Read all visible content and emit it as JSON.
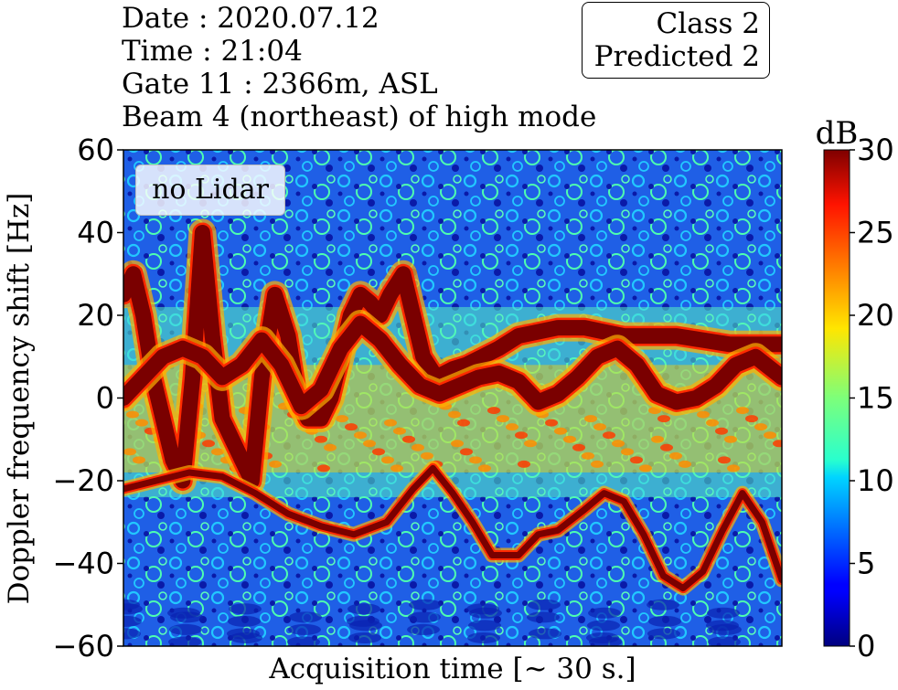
{
  "header": {
    "date": "Date : 2020.07.12",
    "time": "Time : 21:04",
    "gate": "Gate 11 : 2366m, ASL",
    "beam": "Beam 4 (northeast) of high mode"
  },
  "class_box": {
    "class_label": "Class 2",
    "predicted_label": "Predicted 2"
  },
  "legend_label": "no Lidar",
  "colors": {
    "background": "#1346d9",
    "noise_light": "#1ec3ff",
    "noise_green": "#6cff88",
    "band_orange": "#ff6a00",
    "signal": "#7a0000"
  },
  "chart_data": {
    "type": "heatmap",
    "xlabel": "Acquisition time [~ 30 s.]",
    "ylabel": "Doppler frequency shift [Hz]",
    "ylim": [
      -60,
      60
    ],
    "yticks": [
      "60",
      "40",
      "20",
      "0",
      "−20",
      "−40",
      "−60"
    ],
    "ytick_values": [
      60,
      40,
      20,
      0,
      -20,
      -40,
      -60
    ],
    "colorbar": {
      "label": "dB",
      "range": [
        0,
        30
      ],
      "ticks": [
        "30",
        "25",
        "20",
        "15",
        "10",
        "5",
        "0"
      ],
      "tick_values": [
        30,
        25,
        20,
        15,
        10,
        5,
        0
      ],
      "colormap": "jet"
    },
    "series": [
      {
        "values": [
          [
            0,
            25
          ],
          [
            0.015,
            30
          ],
          [
            0.03,
            20
          ],
          [
            0.045,
            5
          ],
          [
            0.06,
            -5
          ],
          [
            0.075,
            -15
          ],
          [
            0.09,
            -20
          ],
          [
            0.105,
            5
          ],
          [
            0.12,
            40
          ],
          [
            0.135,
            15
          ],
          [
            0.15,
            -5
          ],
          [
            0.165,
            -10
          ],
          [
            0.18,
            -15
          ],
          [
            0.195,
            -20
          ],
          [
            0.21,
            5
          ],
          [
            0.23,
            25
          ],
          [
            0.25,
            15
          ],
          [
            0.265,
            0
          ],
          [
            0.28,
            -5
          ],
          [
            0.3,
            -5
          ],
          [
            0.315,
            0
          ],
          [
            0.33,
            10
          ],
          [
            0.345,
            20
          ],
          [
            0.36,
            25
          ],
          [
            0.375,
            23
          ],
          [
            0.39,
            20
          ],
          [
            0.405,
            25
          ],
          [
            0.425,
            30
          ],
          [
            0.44,
            20
          ],
          [
            0.455,
            10
          ],
          [
            0.475,
            5
          ],
          [
            0.5,
            7
          ],
          [
            0.52,
            8
          ],
          [
            0.545,
            10
          ],
          [
            0.57,
            12
          ],
          [
            0.6,
            15
          ],
          [
            0.63,
            16
          ],
          [
            0.66,
            17
          ],
          [
            0.7,
            17
          ],
          [
            0.73,
            16
          ],
          [
            0.76,
            15
          ],
          [
            0.8,
            15
          ],
          [
            0.84,
            15
          ],
          [
            0.88,
            14
          ],
          [
            0.92,
            13
          ],
          [
            0.96,
            13
          ],
          [
            1.0,
            13
          ]
        ]
      },
      {
        "values": [
          [
            0,
            0
          ],
          [
            0.03,
            5
          ],
          [
            0.06,
            10
          ],
          [
            0.09,
            12
          ],
          [
            0.12,
            10
          ],
          [
            0.15,
            5
          ],
          [
            0.18,
            8
          ],
          [
            0.21,
            14
          ],
          [
            0.24,
            8
          ],
          [
            0.27,
            -2
          ],
          [
            0.3,
            2
          ],
          [
            0.33,
            12
          ],
          [
            0.36,
            18
          ],
          [
            0.39,
            14
          ],
          [
            0.42,
            8
          ],
          [
            0.45,
            3
          ],
          [
            0.48,
            1
          ],
          [
            0.51,
            3
          ],
          [
            0.54,
            5
          ],
          [
            0.57,
            6
          ],
          [
            0.6,
            4
          ],
          [
            0.63,
            -1
          ],
          [
            0.66,
            1
          ],
          [
            0.69,
            5
          ],
          [
            0.72,
            10
          ],
          [
            0.75,
            12
          ],
          [
            0.78,
            8
          ],
          [
            0.81,
            1
          ],
          [
            0.84,
            -1
          ],
          [
            0.87,
            0
          ],
          [
            0.9,
            3
          ],
          [
            0.93,
            8
          ],
          [
            0.96,
            10
          ],
          [
            1.0,
            5
          ]
        ]
      },
      {
        "values": [
          [
            0,
            -22
          ],
          [
            0.05,
            -20
          ],
          [
            0.1,
            -18
          ],
          [
            0.15,
            -19
          ],
          [
            0.2,
            -23
          ],
          [
            0.25,
            -28
          ],
          [
            0.3,
            -31
          ],
          [
            0.35,
            -33
          ],
          [
            0.4,
            -30
          ],
          [
            0.44,
            -22
          ],
          [
            0.47,
            -17
          ],
          [
            0.5,
            -23
          ],
          [
            0.53,
            -30
          ],
          [
            0.56,
            -38
          ],
          [
            0.6,
            -38
          ],
          [
            0.63,
            -33
          ],
          [
            0.66,
            -32
          ],
          [
            0.7,
            -27
          ],
          [
            0.73,
            -23
          ],
          [
            0.76,
            -25
          ],
          [
            0.79,
            -33
          ],
          [
            0.82,
            -43
          ],
          [
            0.85,
            -46
          ],
          [
            0.88,
            -42
          ],
          [
            0.91,
            -32
          ],
          [
            0.94,
            -23
          ],
          [
            0.97,
            -30
          ],
          [
            1.0,
            -44
          ]
        ]
      }
    ]
  }
}
